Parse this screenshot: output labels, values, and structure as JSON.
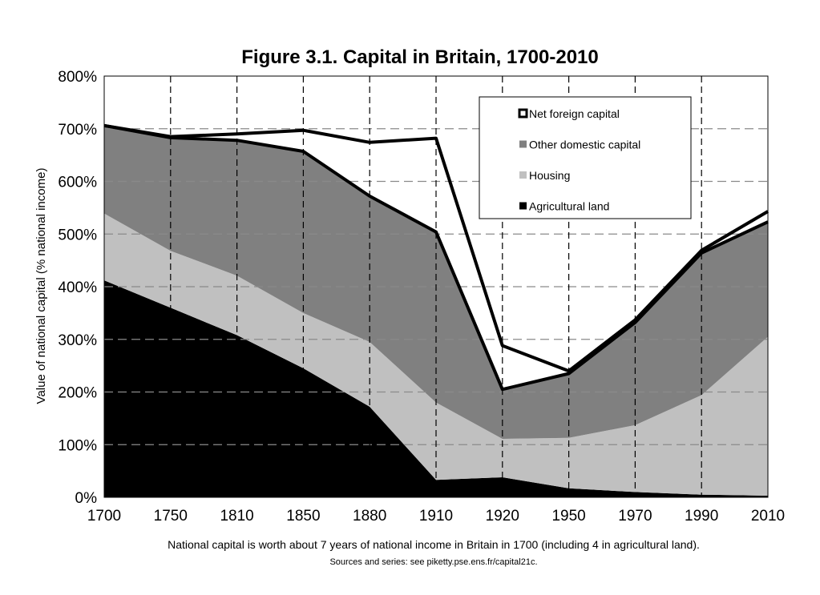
{
  "chart_data": {
    "type": "area",
    "title": "Figure 3.1. Capital in Britain, 1700-2010",
    "ylabel": "Value of national capital (% national income)",
    "xlabel": "",
    "ylim": [
      0,
      800
    ],
    "y_ticks": [
      "0%",
      "100%",
      "200%",
      "300%",
      "400%",
      "500%",
      "600%",
      "700%",
      "800%"
    ],
    "x": [
      "1700",
      "1750",
      "1810",
      "1850",
      "1880",
      "1910",
      "1920",
      "1950",
      "1970",
      "1990",
      "2010"
    ],
    "stacked": true,
    "grid": true,
    "legend_position": "top-right",
    "series": [
      {
        "name": "Agricultural land",
        "color": "#000000",
        "values": [
          412,
          360,
          308,
          245,
          172,
          33,
          38,
          17,
          10,
          5,
          3
        ]
      },
      {
        "name": "Housing",
        "color": "#c0c0c0",
        "values": [
          127,
          108,
          113,
          105,
          123,
          147,
          73,
          96,
          127,
          189,
          302
        ]
      },
      {
        "name": "Other domestic capital",
        "color": "#808080",
        "values": [
          167,
          215,
          257,
          307,
          277,
          324,
          94,
          122,
          195,
          270,
          218
        ]
      },
      {
        "name": "Net foreign capital",
        "color": "#ffffff",
        "values": [
          0,
          2,
          12,
          40,
          102,
          178,
          83,
          5,
          5,
          5,
          20
        ]
      }
    ]
  },
  "notes": {
    "line1": "National capital is worth about 7 years of national income in Britain in 1700 (including 4 in agricultural land).",
    "line2": "Sources and series: see piketty.pse.ens.fr/capital21c."
  }
}
